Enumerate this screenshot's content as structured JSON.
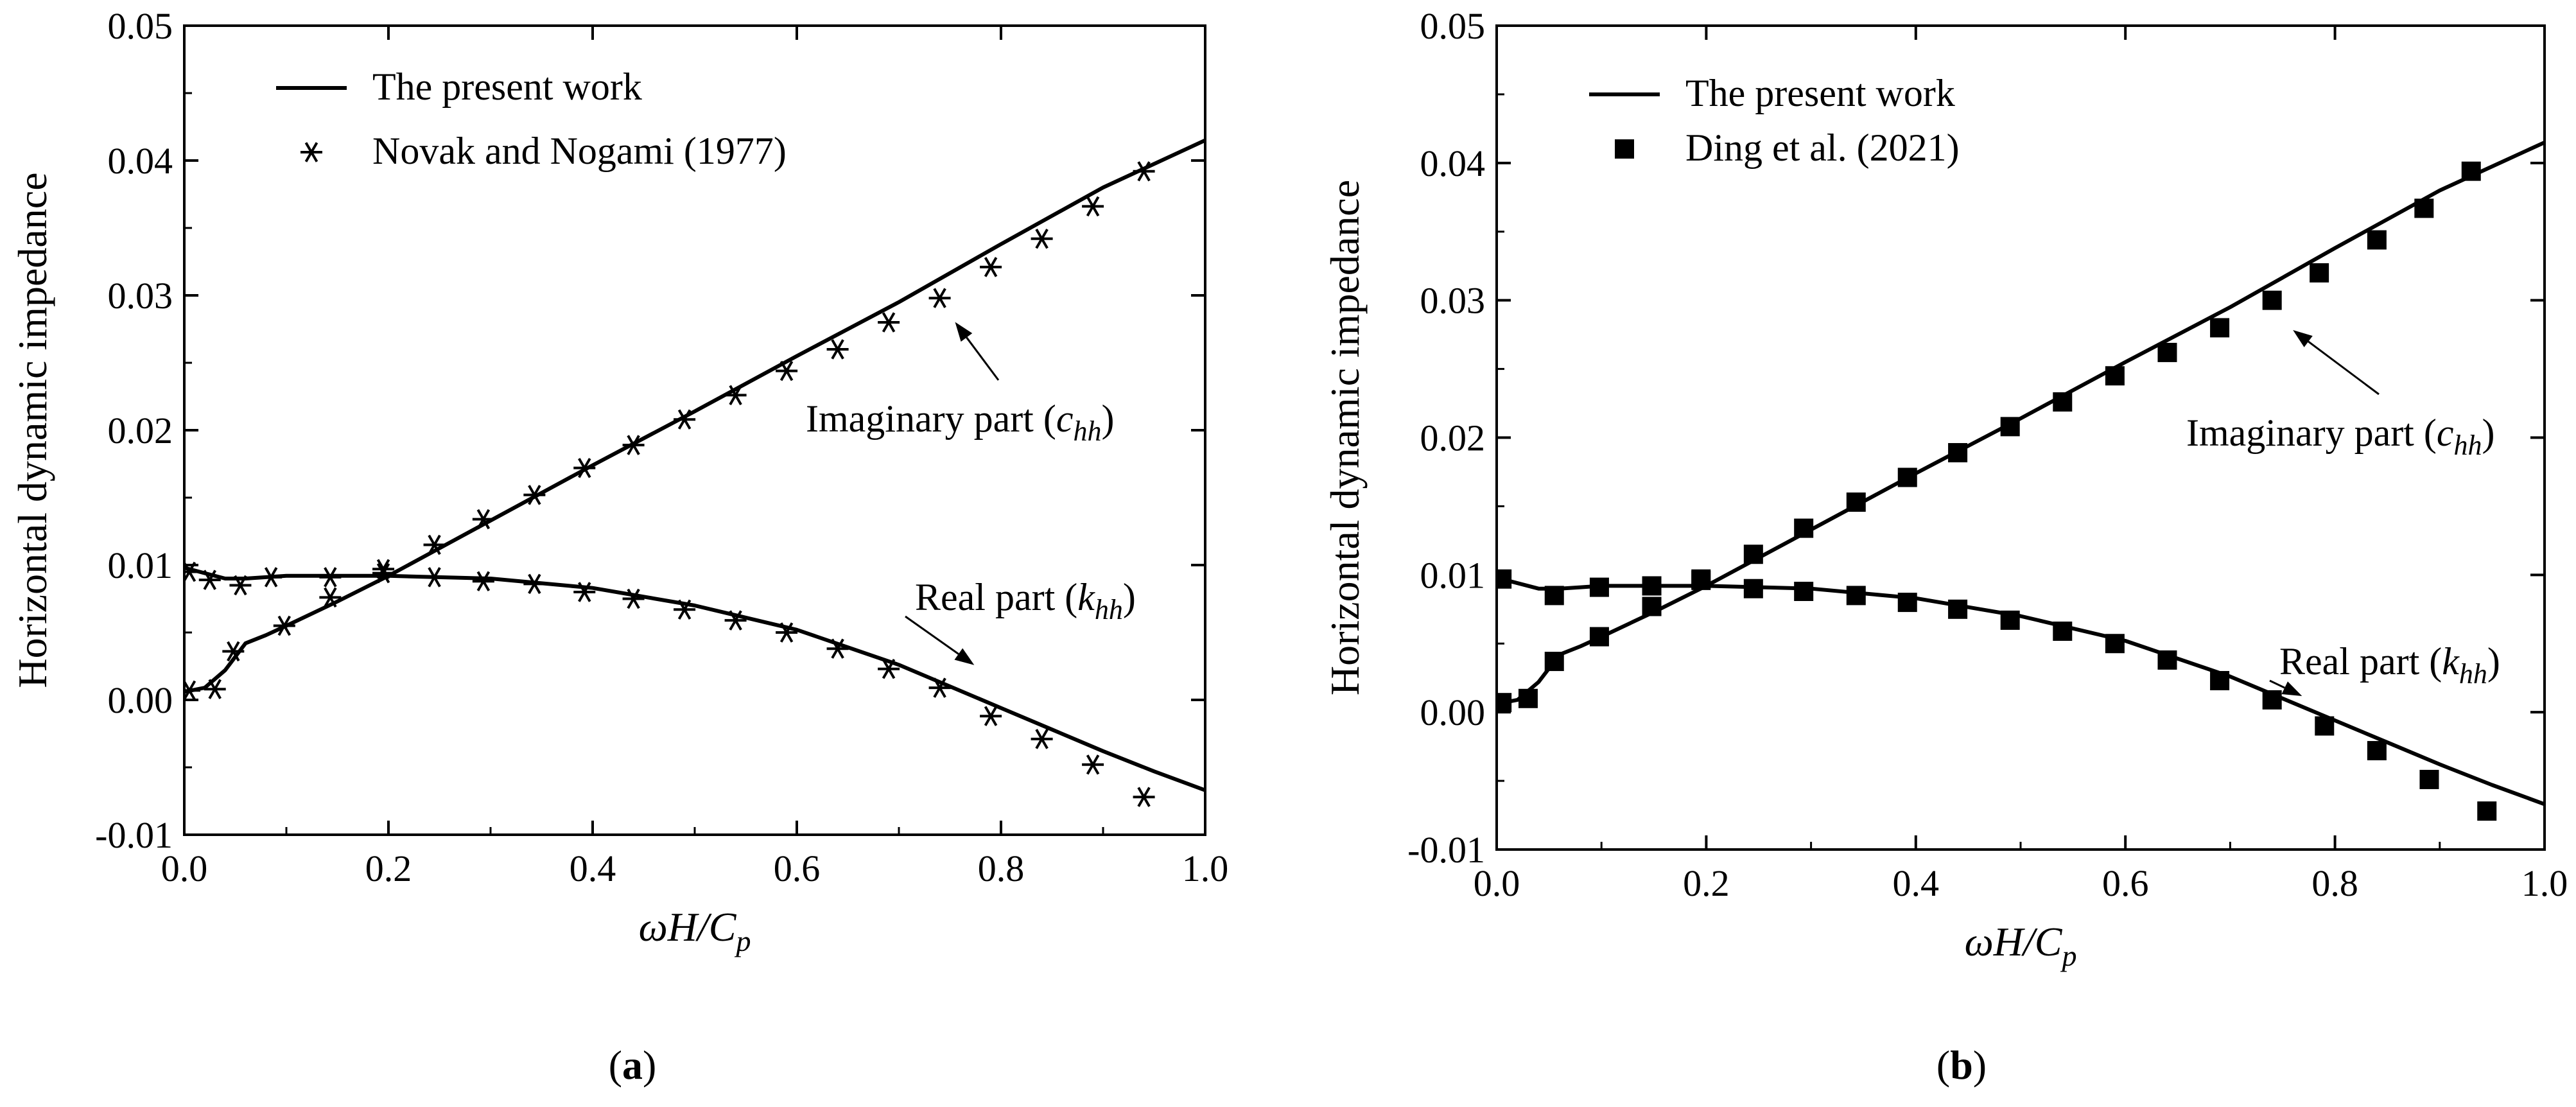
{
  "chart_data": [
    {
      "type": "line",
      "panel": "a",
      "caption": {
        "open": "(",
        "letter": "a",
        "close": ")"
      },
      "xlabel": {
        "omega": "ω",
        "main": "H/C",
        "sub": "p"
      },
      "ylabel": "Horizontal dynamic impedance",
      "xlim": [
        0.0,
        1.0
      ],
      "ylim": [
        -0.01,
        0.05
      ],
      "xticks": [
        0.0,
        0.2,
        0.4,
        0.6,
        0.8,
        1.0
      ],
      "xtick_labels": [
        "0.0",
        "0.2",
        "0.4",
        "0.6",
        "0.8",
        "1.0"
      ],
      "yticks": [
        -0.01,
        0.0,
        0.01,
        0.02,
        0.03,
        0.04,
        0.05
      ],
      "ytick_labels": [
        "-0.01",
        "0.00",
        "0.01",
        "0.02",
        "0.03",
        "0.04",
        "0.05"
      ],
      "legend": {
        "position": "top-left",
        "line_label": "The present work",
        "marker_label": "Novak and Nogami (1977)",
        "marker": "asterisk"
      },
      "annotations": {
        "imaginary": {
          "text": "Imaginary part (",
          "var": "c",
          "sub": "hh",
          "close": ")",
          "at": [
            0.75,
            0.0285
          ]
        },
        "real": {
          "text": "Real part (",
          "var": "k",
          "sub": "hh",
          "close": ")",
          "at": [
            0.765,
            0.0022
          ]
        }
      },
      "series": [
        {
          "name": "The present work (Imaginary part)",
          "style": "line",
          "x": [
            0.0,
            0.02,
            0.04,
            0.06,
            0.08,
            0.1,
            0.15,
            0.2,
            0.3,
            0.4,
            0.5,
            0.6,
            0.7,
            0.8,
            0.9,
            1.0
          ],
          "y": [
            0.0006,
            0.0009,
            0.0022,
            0.0042,
            0.0048,
            0.0055,
            0.0073,
            0.0092,
            0.0133,
            0.0174,
            0.0214,
            0.0255,
            0.0295,
            0.0338,
            0.038,
            0.0415
          ]
        },
        {
          "name": "The present work (Real part)",
          "style": "line",
          "x": [
            0.0,
            0.02,
            0.04,
            0.06,
            0.08,
            0.1,
            0.2,
            0.3,
            0.4,
            0.5,
            0.6,
            0.7,
            0.75,
            0.8,
            0.85,
            0.9,
            0.95,
            1.0
          ],
          "y": [
            0.0098,
            0.0094,
            0.009,
            0.009,
            0.0091,
            0.0092,
            0.0092,
            0.009,
            0.0083,
            0.007,
            0.0052,
            0.0026,
            0.001,
            -0.0006,
            -0.0022,
            -0.0038,
            -0.0053,
            -0.0067
          ]
        },
        {
          "name": "Novak and Nogami (1977) (Imaginary part)",
          "style": "marker",
          "x": [
            0.005,
            0.03,
            0.048,
            0.098,
            0.143,
            0.195,
            0.245,
            0.293,
            0.343,
            0.392,
            0.44,
            0.49,
            0.54,
            0.59,
            0.64,
            0.69,
            0.74,
            0.79,
            0.84,
            0.89,
            0.94
          ],
          "y": [
            0.0007,
            0.0008,
            0.0036,
            0.0055,
            0.0076,
            0.0097,
            0.0115,
            0.0134,
            0.0152,
            0.0172,
            0.0189,
            0.0208,
            0.0226,
            0.0244,
            0.026,
            0.028,
            0.0298,
            0.0321,
            0.0342,
            0.0366,
            0.0392
          ]
        },
        {
          "name": "Novak and Nogami (1977) (Real part)",
          "style": "marker",
          "x": [
            0.005,
            0.025,
            0.055,
            0.085,
            0.143,
            0.195,
            0.245,
            0.293,
            0.343,
            0.392,
            0.44,
            0.49,
            0.54,
            0.59,
            0.64,
            0.69,
            0.74,
            0.79,
            0.84,
            0.89,
            0.94
          ],
          "y": [
            0.0095,
            0.0089,
            0.0085,
            0.0091,
            0.0091,
            0.0094,
            0.0091,
            0.0088,
            0.0086,
            0.008,
            0.0075,
            0.0067,
            0.0059,
            0.005,
            0.0038,
            0.0023,
            0.0009,
            -0.0012,
            -0.0029,
            -0.0048,
            -0.0072
          ]
        }
      ]
    },
    {
      "type": "line",
      "panel": "b",
      "caption": {
        "open": "(",
        "letter": "b",
        "close": ")"
      },
      "xlabel": {
        "omega": "ω",
        "main": "H/C",
        "sub": "p"
      },
      "ylabel": "Horizontal dynamic impedance",
      "xlim": [
        0.0,
        1.0
      ],
      "ylim": [
        -0.01,
        0.05
      ],
      "xticks": [
        0.0,
        0.2,
        0.4,
        0.6,
        0.8,
        1.0
      ],
      "xtick_labels": [
        "0.0",
        "0.2",
        "0.4",
        "0.6",
        "0.8",
        "1.0"
      ],
      "yticks": [
        -0.01,
        0.0,
        0.01,
        0.02,
        0.03,
        0.04,
        0.05
      ],
      "ytick_labels": [
        "-0.01",
        "0.00",
        "0.01",
        "0.02",
        "0.03",
        "0.04",
        "0.05"
      ],
      "legend": {
        "position": "top-left",
        "line_label": "The present work",
        "marker_label": "Ding et al. (2021)",
        "marker": "square"
      },
      "annotations": {
        "imaginary": {
          "text": "Imaginary part (",
          "var": "c",
          "sub": "hh",
          "close": ")",
          "at": [
            0.755,
            0.0283
          ]
        },
        "real": {
          "text": "Real part (",
          "var": "k",
          "sub": "hh",
          "close": ")",
          "at": [
            0.76,
            0.0008
          ]
        }
      },
      "series": [
        {
          "name": "The present work (Imaginary part)",
          "style": "line",
          "x": [
            0.0,
            0.02,
            0.04,
            0.06,
            0.08,
            0.1,
            0.15,
            0.2,
            0.3,
            0.4,
            0.5,
            0.6,
            0.7,
            0.8,
            0.9,
            1.0
          ],
          "y": [
            0.0006,
            0.0009,
            0.0022,
            0.0042,
            0.0048,
            0.0055,
            0.0073,
            0.0092,
            0.0133,
            0.0174,
            0.0214,
            0.0255,
            0.0295,
            0.0338,
            0.038,
            0.0415
          ]
        },
        {
          "name": "The present work (Real part)",
          "style": "line",
          "x": [
            0.0,
            0.02,
            0.04,
            0.06,
            0.08,
            0.1,
            0.2,
            0.3,
            0.4,
            0.5,
            0.6,
            0.7,
            0.75,
            0.8,
            0.85,
            0.9,
            0.95,
            1.0
          ],
          "y": [
            0.0098,
            0.0094,
            0.009,
            0.009,
            0.0091,
            0.0092,
            0.0092,
            0.009,
            0.0083,
            0.007,
            0.0052,
            0.0026,
            0.001,
            -0.0006,
            -0.0022,
            -0.0038,
            -0.0053,
            -0.0067
          ]
        },
        {
          "name": "Ding et al. (2021) (Imaginary part)",
          "style": "marker",
          "x": [
            0.005,
            0.03,
            0.055,
            0.098,
            0.148,
            0.195,
            0.245,
            0.293,
            0.343,
            0.392,
            0.44,
            0.49,
            0.54,
            0.59,
            0.64,
            0.69,
            0.74,
            0.785,
            0.84,
            0.885,
            0.93
          ],
          "y": [
            0.0007,
            0.001,
            0.0037,
            0.0055,
            0.0077,
            0.0097,
            0.0115,
            0.0134,
            0.0153,
            0.0171,
            0.0189,
            0.0208,
            0.0226,
            0.0245,
            0.0262,
            0.028,
            0.03,
            0.032,
            0.0344,
            0.0367,
            0.0394
          ]
        },
        {
          "name": "Ding et al. (2021) (Real part)",
          "style": "marker",
          "x": [
            0.005,
            0.055,
            0.098,
            0.148,
            0.195,
            0.245,
            0.293,
            0.343,
            0.392,
            0.44,
            0.49,
            0.54,
            0.59,
            0.64,
            0.69,
            0.74,
            0.79,
            0.84,
            0.89,
            0.945
          ],
          "y": [
            0.0097,
            0.0085,
            0.0091,
            0.0092,
            0.0096,
            0.009,
            0.0088,
            0.0085,
            0.008,
            0.0075,
            0.0067,
            0.0059,
            0.005,
            0.0038,
            0.0023,
            0.0009,
            -0.001,
            -0.0028,
            -0.0049,
            -0.0072
          ]
        }
      ]
    }
  ]
}
